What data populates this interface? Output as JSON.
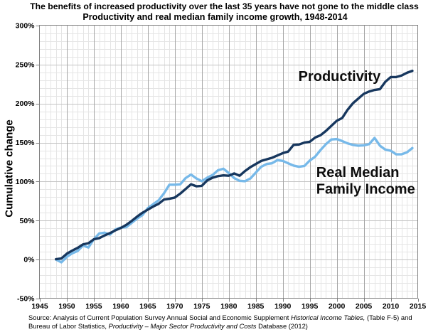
{
  "title": {
    "line1": "The benefits of increased productivity over the last 35 years have not gone to the middle class",
    "line2": "Productivity and real median family income growth, 1948-2014"
  },
  "chart_data": {
    "type": "line",
    "title": "The benefits of increased productivity over the last 35 years have not gone to the middle class",
    "subtitle": "Productivity and real median family income growth, 1948-2014",
    "xlabel": "",
    "ylabel": "Cumulative change",
    "xlim": [
      1945,
      2015
    ],
    "ylim": [
      -50,
      300
    ],
    "x_major_step": 5,
    "x_minor_step": 1,
    "y_major_step": 50,
    "y_minor_step": 10,
    "grid": true,
    "x": [
      1948,
      1949,
      1950,
      1951,
      1952,
      1953,
      1954,
      1955,
      1956,
      1957,
      1958,
      1959,
      1960,
      1961,
      1962,
      1963,
      1964,
      1965,
      1966,
      1967,
      1968,
      1969,
      1970,
      1971,
      1972,
      1973,
      1974,
      1975,
      1976,
      1977,
      1978,
      1979,
      1980,
      1981,
      1982,
      1983,
      1984,
      1985,
      1986,
      1987,
      1988,
      1989,
      1990,
      1991,
      1992,
      1993,
      1994,
      1995,
      1996,
      1997,
      1998,
      1999,
      2000,
      2001,
      2002,
      2003,
      2004,
      2005,
      2006,
      2007,
      2008,
      2009,
      2010,
      2011,
      2012,
      2013,
      2014
    ],
    "series": [
      {
        "name": "Productivity",
        "color": "#17375e",
        "values": [
          0.5,
          1.5,
          7.5,
          11.5,
          15,
          19.5,
          21,
          26,
          27.5,
          31,
          34,
          37.5,
          40.5,
          44.5,
          49.5,
          55,
          60,
          64,
          68,
          71.5,
          77,
          78,
          79.5,
          84.5,
          90.5,
          96.5,
          94,
          94.5,
          101.5,
          105,
          107,
          108,
          107.5,
          110.5,
          107.5,
          113.5,
          118.5,
          122.5,
          126.5,
          128.5,
          130.5,
          133.5,
          136.5,
          138.5,
          147,
          147.5,
          150,
          151,
          156.5,
          159.5,
          165,
          171.5,
          178,
          181.5,
          192,
          200.5,
          206.5,
          212.5,
          215.5,
          217.5,
          218.5,
          228,
          234,
          234,
          236,
          239.5,
          242
        ]
      },
      {
        "name": "Real Median Family Income",
        "color": "#77b9e9",
        "values": [
          0,
          -3.5,
          3.5,
          8,
          11,
          18,
          15.5,
          26,
          33.5,
          34.5,
          32,
          38.5,
          41,
          41.5,
          47,
          52.5,
          57,
          66,
          71,
          76,
          85,
          96,
          96,
          96.5,
          104.5,
          109,
          104,
          100.5,
          105,
          108.5,
          114.5,
          116.5,
          111,
          104.5,
          101,
          100.5,
          104,
          111.5,
          119,
          122.5,
          123.5,
          127.5,
          126.5,
          123.5,
          120.5,
          119,
          120,
          127,
          132,
          140.5,
          148,
          154,
          154.5,
          152,
          149,
          147,
          146,
          146.5,
          148,
          156,
          146,
          141,
          139.5,
          135,
          135,
          137.5,
          143
        ]
      }
    ],
    "x_ticks": [
      {
        "v": 1945,
        "label": "1945"
      },
      {
        "v": 1950,
        "label": "1950"
      },
      {
        "v": 1955,
        "label": "1955"
      },
      {
        "v": 1960,
        "label": "1960"
      },
      {
        "v": 1965,
        "label": "1965"
      },
      {
        "v": 1970,
        "label": "1970"
      },
      {
        "v": 1975,
        "label": "1975"
      },
      {
        "v": 1980,
        "label": "1980"
      },
      {
        "v": 1985,
        "label": "1985"
      },
      {
        "v": 1990,
        "label": "1990"
      },
      {
        "v": 1995,
        "label": "1995"
      },
      {
        "v": 2000,
        "label": "2000"
      },
      {
        "v": 2005,
        "label": "2005"
      },
      {
        "v": 2010,
        "label": "2010"
      },
      {
        "v": 2015,
        "label": "2015"
      }
    ],
    "y_ticks": [
      {
        "v": -50,
        "label": "-50%"
      },
      {
        "v": 0,
        "label": "0%"
      },
      {
        "v": 50,
        "label": "50%"
      },
      {
        "v": 100,
        "label": "100%"
      },
      {
        "v": 150,
        "label": "150%"
      },
      {
        "v": 200,
        "label": "200%"
      },
      {
        "v": 250,
        "label": "250%"
      },
      {
        "v": 300,
        "label": "300%"
      }
    ],
    "annotations": [
      {
        "name": "productivity-label",
        "lines": [
          "Productivity"
        ],
        "x": 2000.5,
        "y": 235.3,
        "anchor": "middle",
        "color": "#0d0d0d"
      },
      {
        "name": "income-label",
        "lines": [
          "Real Median",
          "Family Income"
        ],
        "x": 1996.2,
        "y": 112.2,
        "anchor": "start",
        "color": "#0d0d0d"
      }
    ],
    "legend_position": "none"
  },
  "colors": {
    "background": "#ffffff",
    "plot_border": "#808080",
    "grid_major_h": "#c3c3c3",
    "grid_major_v": "#a5a5a5",
    "grid_minor": "#e5e5e5",
    "tick": "#808080",
    "tick_label": "#000000",
    "axis_title": "#000000"
  },
  "source": {
    "line1_parts": [
      {
        "text": "Source:  Analysis of Current Population Survey Annual Social and Economic Supplement "
      },
      {
        "text": "Historical Income Tables,",
        "italic": true
      },
      {
        "text": " (Table F-5) and"
      }
    ],
    "line2_parts": [
      {
        "text": "Bureau of Labor Statistics, "
      },
      {
        "text": "Productivity – Major Sector Productivity and Costs",
        "italic": true
      },
      {
        "text": " Database (2012)"
      }
    ]
  }
}
